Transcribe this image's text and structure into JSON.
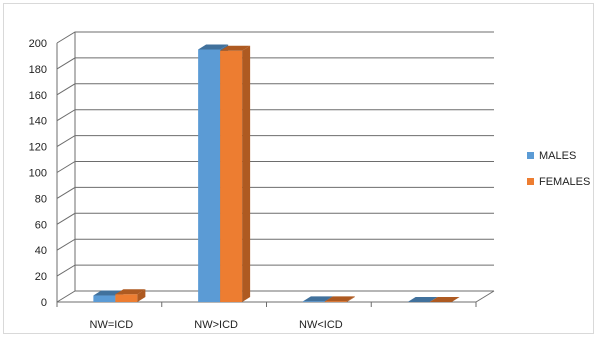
{
  "chart_data": {
    "type": "bar",
    "categories": [
      "NW=ICD",
      "NW>ICD",
      "NW<ICD",
      ""
    ],
    "series": [
      {
        "name": "MALES",
        "color": "#5B9BD5",
        "side_color": "#41719C",
        "values": [
          5,
          195,
          0.5,
          0
        ]
      },
      {
        "name": "FEMALES",
        "color": "#ED7D31",
        "side_color": "#AE5A21",
        "values": [
          6,
          194,
          0.5,
          0
        ]
      }
    ],
    "ylim": [
      0,
      200
    ],
    "yticks": [
      "0",
      "20",
      "40",
      "60",
      "80",
      "100",
      "120",
      "140",
      "160",
      "180",
      "200"
    ],
    "grid": true,
    "legend_position": "right",
    "title": "",
    "xlabel": "",
    "ylabel": ""
  }
}
